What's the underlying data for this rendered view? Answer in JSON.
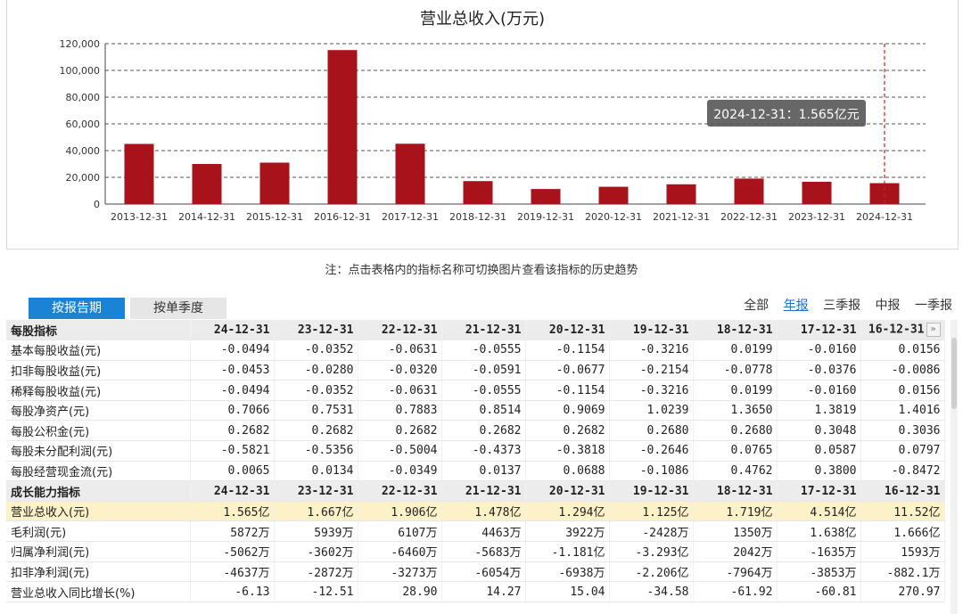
{
  "chart_data": {
    "type": "bar",
    "title": "营业总收入(万元)",
    "categories": [
      "2013-12-31",
      "2014-12-31",
      "2015-12-31",
      "2016-12-31",
      "2017-12-31",
      "2018-12-31",
      "2019-12-31",
      "2020-12-31",
      "2021-12-31",
      "2022-12-31",
      "2023-12-31",
      "2024-12-31"
    ],
    "values": [
      45000,
      30000,
      31000,
      115200,
      45140,
      17190,
      11250,
      12940,
      14780,
      19060,
      16670,
      15650
    ],
    "ylim": [
      0,
      120000
    ],
    "yticks": [
      "0",
      "20,000",
      "40,000",
      "60,000",
      "80,000",
      "100,000",
      "120,000"
    ],
    "ytick_values": [
      0,
      20000,
      40000,
      60000,
      80000,
      100000,
      120000
    ],
    "grid": true,
    "bar_color": "#a8121a",
    "tooltip": "2024-12-31：1.565亿元"
  },
  "note": "注：点击表格内的指标名称可切换图片查看该指标的历史趋势",
  "tabs": {
    "report_period": "按报告期",
    "single_quarter": "按单季度"
  },
  "filters": [
    "全部",
    "年报",
    "三季报",
    "中报",
    "一季报"
  ],
  "filter_selected": "年报",
  "scroll_right_glyph": "»",
  "table": {
    "columns": [
      "24-12-31",
      "23-12-31",
      "22-12-31",
      "21-12-31",
      "20-12-31",
      "19-12-31",
      "18-12-31",
      "17-12-31",
      "16-12-31"
    ],
    "sections": [
      {
        "title": "每股指标",
        "show_columns": false,
        "rows": [
          {
            "name": "基本每股收益(元)",
            "values": [
              "-0.0494",
              "-0.0352",
              "-0.0631",
              "-0.0555",
              "-0.1154",
              "-0.3216",
              "0.0199",
              "-0.0160",
              "0.0156"
            ]
          },
          {
            "name": "扣非每股收益(元)",
            "values": [
              "-0.0453",
              "-0.0280",
              "-0.0320",
              "-0.0591",
              "-0.0677",
              "-0.2154",
              "-0.0778",
              "-0.0376",
              "-0.0086"
            ]
          },
          {
            "name": "稀释每股收益(元)",
            "values": [
              "-0.0494",
              "-0.0352",
              "-0.0631",
              "-0.0555",
              "-0.1154",
              "-0.3216",
              "0.0199",
              "-0.0160",
              "0.0156"
            ]
          },
          {
            "name": "每股净资产(元)",
            "values": [
              "0.7066",
              "0.7531",
              "0.7883",
              "0.8514",
              "0.9069",
              "1.0239",
              "1.3650",
              "1.3819",
              "1.4016"
            ]
          },
          {
            "name": "每股公积金(元)",
            "values": [
              "0.2682",
              "0.2682",
              "0.2682",
              "0.2682",
              "0.2682",
              "0.2680",
              "0.2680",
              "0.3048",
              "0.3036"
            ]
          },
          {
            "name": "每股未分配利润(元)",
            "values": [
              "-0.5821",
              "-0.5356",
              "-0.5004",
              "-0.4373",
              "-0.3818",
              "-0.2646",
              "0.0765",
              "0.0587",
              "0.0797"
            ]
          },
          {
            "name": "每股经营现金流(元)",
            "values": [
              "0.0065",
              "0.0134",
              "-0.0349",
              "0.0137",
              "0.0688",
              "-0.1086",
              "0.4762",
              "0.3800",
              "-0.8472"
            ]
          }
        ]
      },
      {
        "title": "成长能力指标",
        "show_columns": true,
        "rows": [
          {
            "name": "营业总收入(元)",
            "highlight": true,
            "values": [
              "1.565亿",
              "1.667亿",
              "1.906亿",
              "1.478亿",
              "1.294亿",
              "1.125亿",
              "1.719亿",
              "4.514亿",
              "11.52亿"
            ]
          },
          {
            "name": "毛利润(元)",
            "values": [
              "5872万",
              "5939万",
              "6107万",
              "4463万",
              "3922万",
              "-2428万",
              "1350万",
              "1.638亿",
              "1.666亿"
            ]
          },
          {
            "name": "归属净利润(元)",
            "values": [
              "-5062万",
              "-3602万",
              "-6460万",
              "-5683万",
              "-1.181亿",
              "-3.293亿",
              "2042万",
              "-1635万",
              "1593万"
            ]
          },
          {
            "name": "扣非净利润(元)",
            "values": [
              "-4637万",
              "-2872万",
              "-3273万",
              "-6054万",
              "-6938万",
              "-2.206亿",
              "-7964万",
              "-3853万",
              "-882.1万"
            ]
          },
          {
            "name": "营业总收入同比增长(%)",
            "values": [
              "-6.13",
              "-12.51",
              "28.90",
              "14.27",
              "15.04",
              "-34.58",
              "-61.92",
              "-60.81",
              "270.97"
            ]
          }
        ]
      }
    ]
  }
}
